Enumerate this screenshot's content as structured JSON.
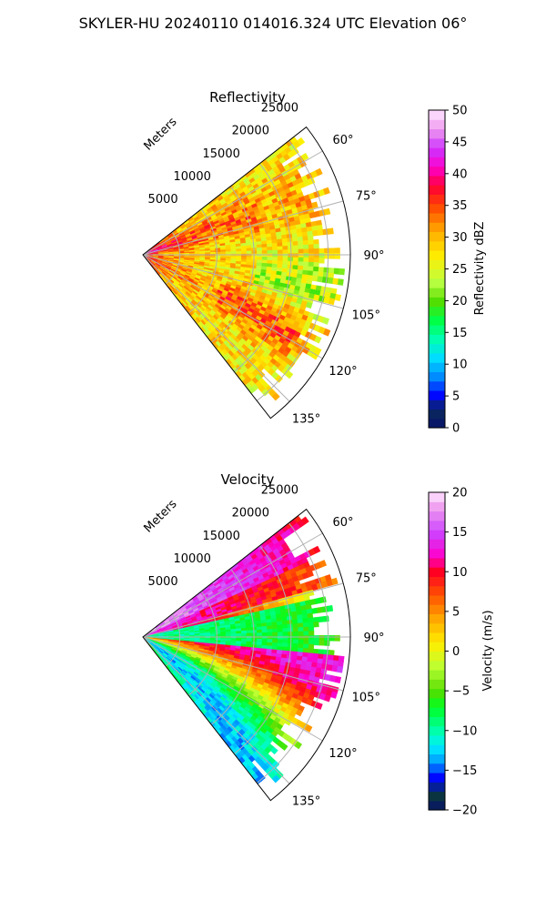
{
  "figure": {
    "suptitle": "SKYLER-HU  20240110  014016.324 UTC Elevation 06°"
  },
  "chart_data": [
    {
      "type": "heatmap",
      "projection": "polar-sector",
      "title": "Reflectivity",
      "range_label": "Meters",
      "range_ticks": [
        5000,
        10000,
        15000,
        20000,
        25000
      ],
      "range_tick_labels": [
        "5000",
        "10000",
        "15000",
        "20000",
        "25000"
      ],
      "range_max": 28000,
      "azimuth_range": [
        52,
        142
      ],
      "azimuth_ticks": [
        60,
        75,
        90,
        105,
        120,
        135
      ],
      "azimuth_tick_labels": [
        "60°",
        "75°",
        "90°",
        "105°",
        "120°",
        "135°"
      ],
      "grid": true,
      "colorbar": {
        "label": "Reflectivity dBZ",
        "min": 0,
        "max": 50,
        "ticks": [
          0,
          5,
          10,
          15,
          20,
          25,
          30,
          35,
          40,
          45,
          50
        ],
        "tick_labels": [
          "0",
          "5",
          "10",
          "15",
          "20",
          "25",
          "30",
          "35",
          "40",
          "45",
          "50"
        ],
        "stops": [
          {
            "v": 0,
            "c": "#07126a"
          },
          {
            "v": 3,
            "c": "#0a2a5a"
          },
          {
            "v": 5,
            "c": "#0000ff"
          },
          {
            "v": 8,
            "c": "#0088ff"
          },
          {
            "v": 11,
            "c": "#00ddff"
          },
          {
            "v": 14,
            "c": "#00ffb0"
          },
          {
            "v": 17,
            "c": "#00ff44"
          },
          {
            "v": 20,
            "c": "#55dd00"
          },
          {
            "v": 23,
            "c": "#bbff44"
          },
          {
            "v": 27,
            "c": "#ffee00"
          },
          {
            "v": 31,
            "c": "#ffaa00"
          },
          {
            "v": 35,
            "c": "#ff4400"
          },
          {
            "v": 38,
            "c": "#ff0033"
          },
          {
            "v": 41,
            "c": "#ff00cc"
          },
          {
            "v": 44,
            "c": "#cc33ff"
          },
          {
            "v": 47,
            "c": "#ee99ee"
          },
          {
            "v": 50,
            "c": "#ffe8ff"
          }
        ]
      }
    },
    {
      "type": "heatmap",
      "projection": "polar-sector",
      "title": "Velocity",
      "range_label": "Meters",
      "range_ticks": [
        5000,
        10000,
        15000,
        20000,
        25000
      ],
      "range_tick_labels": [
        "5000",
        "10000",
        "15000",
        "20000",
        "25000"
      ],
      "range_max": 28000,
      "azimuth_range": [
        52,
        142
      ],
      "azimuth_ticks": [
        60,
        75,
        90,
        105,
        120,
        135
      ],
      "azimuth_tick_labels": [
        "60°",
        "75°",
        "90°",
        "105°",
        "120°",
        "135°"
      ],
      "grid": true,
      "colorbar": {
        "label": "Velocity (m/s)",
        "min": -20,
        "max": 20,
        "ticks": [
          -20,
          -15,
          -10,
          -5,
          0,
          5,
          10,
          15,
          20
        ],
        "tick_labels": [
          "−20",
          "−15",
          "−10",
          "−5",
          "0",
          "5",
          "10",
          "15",
          "20"
        ],
        "stops": [
          {
            "v": -20,
            "c": "#07126a"
          },
          {
            "v": -18,
            "c": "#0a3a3a"
          },
          {
            "v": -16,
            "c": "#0000ff"
          },
          {
            "v": -14,
            "c": "#0099ff"
          },
          {
            "v": -12,
            "c": "#00eeff"
          },
          {
            "v": -10,
            "c": "#00ffaa"
          },
          {
            "v": -7,
            "c": "#00ff22"
          },
          {
            "v": -5,
            "c": "#55dd00"
          },
          {
            "v": -2,
            "c": "#bbff33"
          },
          {
            "v": 1,
            "c": "#ffee00"
          },
          {
            "v": 4,
            "c": "#ffaa00"
          },
          {
            "v": 7,
            "c": "#ff5500"
          },
          {
            "v": 10,
            "c": "#ff0022"
          },
          {
            "v": 12,
            "c": "#ff00cc"
          },
          {
            "v": 15,
            "c": "#cc44ff"
          },
          {
            "v": 18,
            "c": "#ee99ee"
          },
          {
            "v": 20,
            "c": "#ffe8ff"
          }
        ]
      }
    }
  ]
}
